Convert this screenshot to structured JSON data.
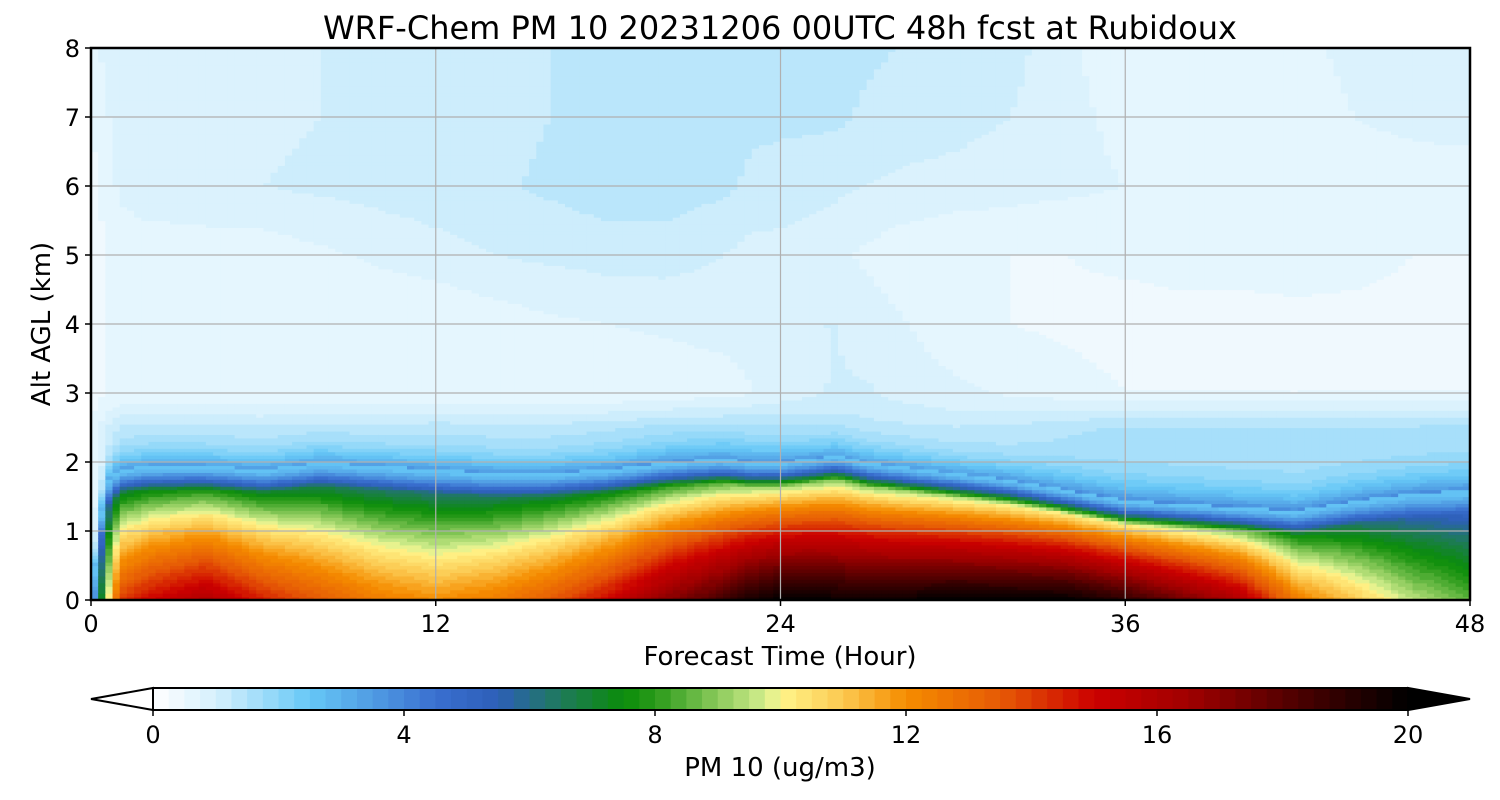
{
  "chart_data": {
    "type": "heatmap",
    "title": "WRF-Chem PM 10  20231206 00UTC 48h fcst at Rubidoux",
    "xlabel": "Forecast Time (Hour)",
    "ylabel": "Alt AGL (km)",
    "xlim": [
      0,
      48
    ],
    "ylim": [
      0,
      8
    ],
    "x_ticks": [
      0,
      12,
      24,
      36,
      48
    ],
    "y_ticks": [
      0,
      1,
      2,
      3,
      4,
      5,
      6,
      7,
      8
    ],
    "grid": true,
    "colorbar": {
      "label": "PM 10  (ug/m3)",
      "range": [
        0,
        20
      ],
      "ticks": [
        0,
        4,
        8,
        12,
        16,
        20
      ],
      "extend": "both",
      "step": 0.25,
      "colors": [
        {
          "v": 0,
          "c": "#ffffff"
        },
        {
          "v": 1,
          "c": "#d6f0fd"
        },
        {
          "v": 2.5,
          "c": "#66c8f6"
        },
        {
          "v": 4.5,
          "c": "#3a6fd0"
        },
        {
          "v": 5.5,
          "c": "#2d5fb8"
        },
        {
          "v": 6.5,
          "c": "#1e7a5a"
        },
        {
          "v": 7.5,
          "c": "#0a8c0a"
        },
        {
          "v": 8,
          "c": "#2a9a1a"
        },
        {
          "v": 9.8,
          "c": "#d8f090"
        },
        {
          "v": 10,
          "c": "#fff58a"
        },
        {
          "v": 11,
          "c": "#fcc850"
        },
        {
          "v": 12,
          "c": "#f58c00"
        },
        {
          "v": 13.5,
          "c": "#e65a05"
        },
        {
          "v": 15,
          "c": "#cc0000"
        },
        {
          "v": 16.5,
          "c": "#a00000"
        },
        {
          "v": 18.5,
          "c": "#400000"
        },
        {
          "v": 20,
          "c": "#000000"
        }
      ]
    },
    "field": {
      "x": [
        0,
        0.5,
        1,
        2,
        4,
        6,
        8,
        10,
        12,
        14,
        16,
        18,
        20,
        22,
        23,
        24,
        25,
        26,
        27,
        28,
        30,
        32,
        34,
        36,
        38,
        40,
        42,
        44,
        46,
        48
      ],
      "bl_top": [
        0.1,
        1.7,
        1.9,
        1.95,
        1.95,
        1.9,
        2.0,
        1.95,
        1.9,
        1.85,
        1.85,
        1.9,
        2.0,
        2.05,
        2.0,
        2.0,
        2.05,
        2.1,
        2.0,
        1.95,
        1.85,
        1.75,
        1.6,
        1.45,
        1.4,
        1.35,
        1.3,
        1.45,
        1.55,
        1.6
      ],
      "surface_max": [
        2,
        9,
        14,
        15,
        16,
        14.5,
        13.5,
        12.5,
        12,
        12.5,
        13.5,
        15,
        17,
        18.5,
        19.5,
        20,
        20,
        19.8,
        19.8,
        19.8,
        20,
        20,
        20,
        19,
        17.5,
        16,
        12.5,
        11,
        9.5,
        8.5
      ],
      "aloft": [
        {
          "z": 2.5,
          "v": [
            0.6,
            0.9,
            1.1,
            1.1,
            1.1,
            1.1,
            1.1,
            1.1,
            1.2,
            1.2,
            1.2,
            1.25,
            1.3,
            1.3,
            1.3,
            1.3,
            1.2,
            1.1,
            1.1,
            1.1,
            1.1,
            1.2,
            1.4,
            1.5,
            1.5,
            1.5,
            1.5,
            1.5,
            1.5,
            1.5
          ]
        },
        {
          "z": 3,
          "v": [
            0.3,
            0.5,
            0.5,
            0.5,
            0.5,
            0.5,
            0.5,
            0.5,
            0.5,
            0.5,
            0.5,
            0.5,
            0.55,
            0.6,
            0.7,
            0.8,
            0.9,
            1.0,
            1.0,
            0.9,
            0.8,
            0.7,
            0.6,
            0.5,
            0.5,
            0.5,
            0.5,
            0.5,
            0.5,
            0.5
          ]
        },
        {
          "z": 4,
          "v": [
            0.3,
            0.5,
            0.6,
            0.6,
            0.6,
            0.55,
            0.5,
            0.5,
            0.5,
            0.6,
            0.7,
            0.75,
            0.8,
            0.85,
            0.9,
            0.95,
            1.0,
            1.0,
            0.9,
            0.8,
            0.6,
            0.5,
            0.45,
            0.4,
            0.4,
            0.4,
            0.4,
            0.4,
            0.4,
            0.4
          ]
        },
        {
          "z": 5,
          "v": [
            0.3,
            0.5,
            0.6,
            0.6,
            0.6,
            0.6,
            0.7,
            0.8,
            0.9,
            1.0,
            1.05,
            1.1,
            1.1,
            1.0,
            0.9,
            0.9,
            0.85,
            0.8,
            0.7,
            0.6,
            0.5,
            0.5,
            0.5,
            0.55,
            0.6,
            0.6,
            0.65,
            0.6,
            0.5,
            0.5
          ]
        },
        {
          "z": 6,
          "v": [
            0.4,
            0.6,
            0.8,
            0.9,
            0.95,
            1.0,
            1.05,
            1.1,
            1.15,
            1.2,
            1.3,
            1.4,
            1.4,
            1.3,
            1.2,
            1.15,
            1.1,
            1.05,
            1.0,
            0.95,
            0.9,
            0.85,
            0.8,
            0.75,
            0.6,
            0.55,
            0.55,
            0.55,
            0.55,
            0.55
          ]
        },
        {
          "z": 7,
          "v": [
            0.5,
            0.7,
            0.9,
            0.95,
            0.95,
            0.95,
            1.0,
            1.05,
            1.1,
            1.15,
            1.25,
            1.35,
            1.4,
            1.35,
            1.3,
            1.3,
            1.3,
            1.3,
            1.2,
            1.15,
            1.1,
            1.0,
            0.8,
            0.7,
            0.6,
            0.6,
            0.65,
            0.75,
            0.85,
            0.9
          ]
        },
        {
          "z": 8,
          "v": [
            0.4,
            0.9,
            1.0,
            1.0,
            1.0,
            1.0,
            1.0,
            1.05,
            1.15,
            1.2,
            1.25,
            1.3,
            1.35,
            1.4,
            1.45,
            1.45,
            1.4,
            1.35,
            1.3,
            1.25,
            1.2,
            1.1,
            0.8,
            0.6,
            0.5,
            0.6,
            0.7,
            0.8,
            1.0,
            1.0
          ]
        }
      ]
    }
  }
}
